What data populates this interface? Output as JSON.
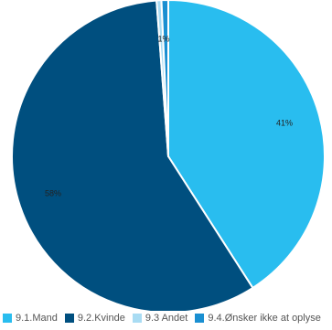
{
  "chart_data": {
    "type": "pie",
    "title": "",
    "slices": [
      {
        "label": "9.1.Mand",
        "value": 41,
        "display": "41%",
        "color": "#29bdef"
      },
      {
        "label": "9.2.Kvinde",
        "value": 58,
        "display": "58%",
        "color": "#004f7f"
      },
      {
        "label": "9.3 Andet",
        "value": 0.5,
        "display": "",
        "color": "#a9dcf3"
      },
      {
        "label": "9.4.Ønsker ikke at oplyse",
        "value": 0.7,
        "display": "1%",
        "color": "#1a8fd1"
      }
    ],
    "legend_position": "bottom"
  }
}
